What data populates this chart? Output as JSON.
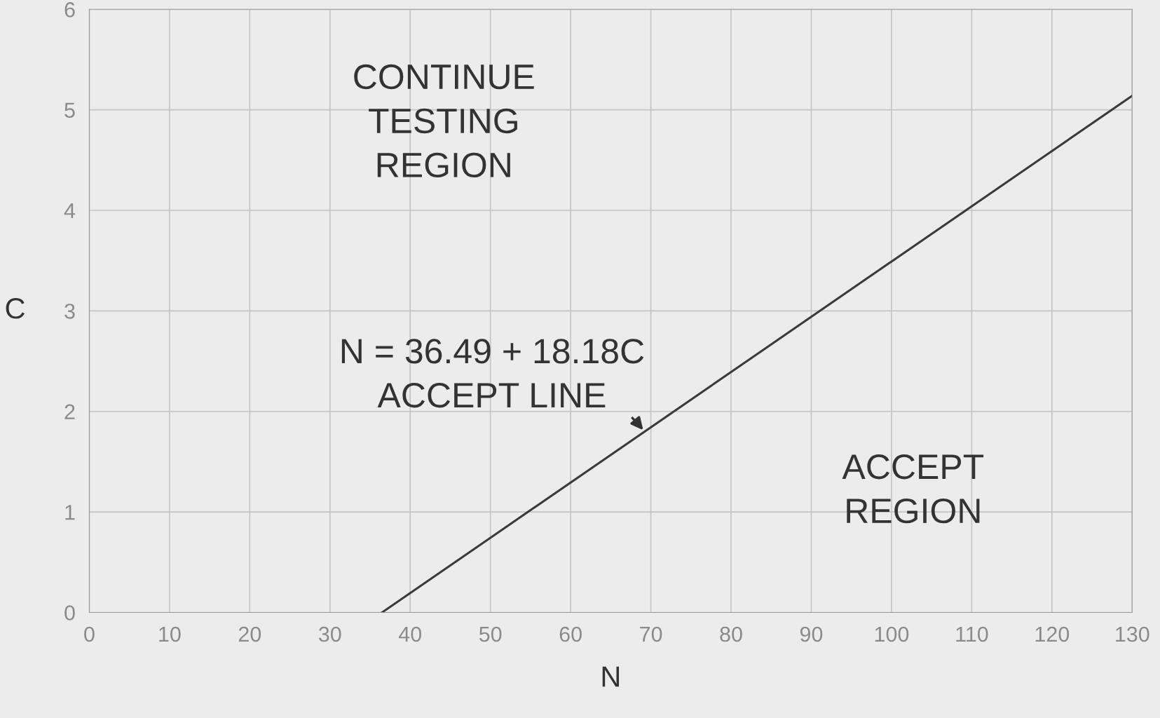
{
  "chart_data": {
    "type": "line",
    "xlabel": "N",
    "ylabel": "C",
    "x": [
      36.49,
      130
    ],
    "series": [
      {
        "color": "#3a3a3a",
        "values": [
          0,
          5.14
        ]
      }
    ],
    "xlim": [
      0,
      130
    ],
    "xticks": [
      0,
      10,
      20,
      30,
      40,
      50,
      60,
      70,
      80,
      90,
      100,
      110,
      120,
      130
    ],
    "ylim": [
      0,
      6
    ],
    "yticks": [
      0,
      1,
      2,
      3,
      4,
      5,
      6
    ],
    "grid": true,
    "legend": false,
    "marker": "none",
    "line_style": "solid",
    "annotations": [
      "CONTINUE\nTESTING\nREGION",
      "ACCEPT\nREGION",
      {
        "text": "N = 36.49 + 18.18C\nACCEPT LINE",
        "x": 69.2,
        "y": 1.8
      }
    ]
  }
}
